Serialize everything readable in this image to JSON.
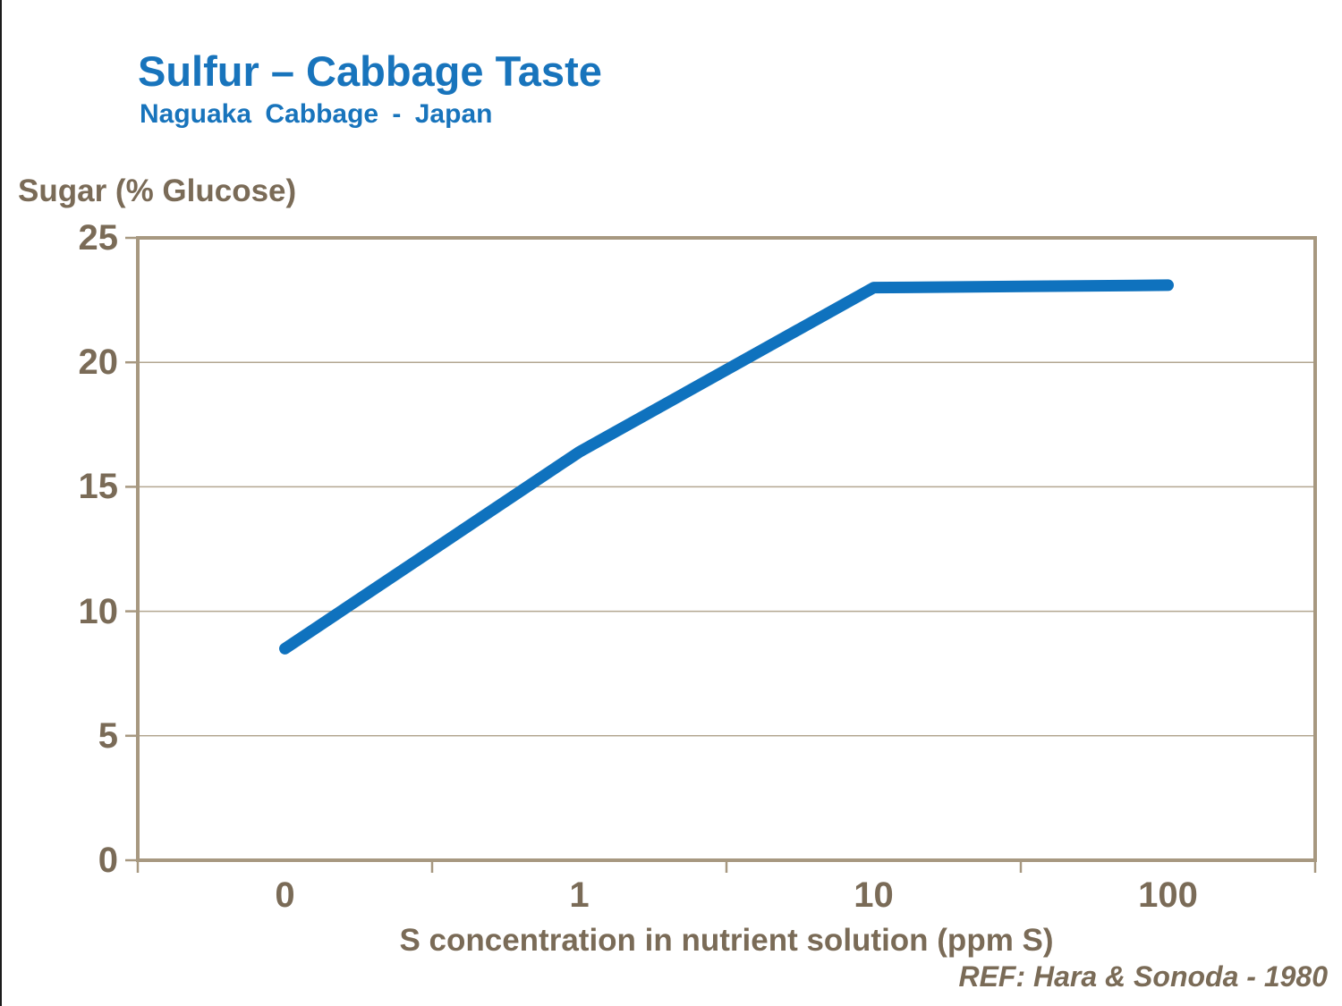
{
  "page": {
    "background": "#FFFFFF",
    "left_edge_line_color": "#1B1B1B"
  },
  "chart_data": {
    "type": "line",
    "title": "Sulfur – Cabbage Taste",
    "subtitle": "Naguaka Cabbage - Japan",
    "ylabel": "Sugar (% Glucose)",
    "xlabel": "S concentration in nutrient solution (ppm S)",
    "reference": "REF: Hara & Sonoda - 1980",
    "categories": [
      "0",
      "1",
      "10",
      "100"
    ],
    "series": [
      {
        "name": "Sugar (% Glucose)",
        "values": [
          8.5,
          16.4,
          23.0,
          23.1
        ]
      }
    ],
    "ylim": [
      0,
      25
    ],
    "yticks": [
      0,
      5,
      10,
      15,
      20,
      25
    ],
    "x_scale": "categorical-equal-spacing",
    "grid": "horizontal-at-yticks",
    "legend_position": "none",
    "colors": {
      "title": "#1874BC",
      "line": "#0F72BE",
      "axis_text": "#7A6B57",
      "frame": "#A79880",
      "gridline": "#B3A791"
    }
  }
}
